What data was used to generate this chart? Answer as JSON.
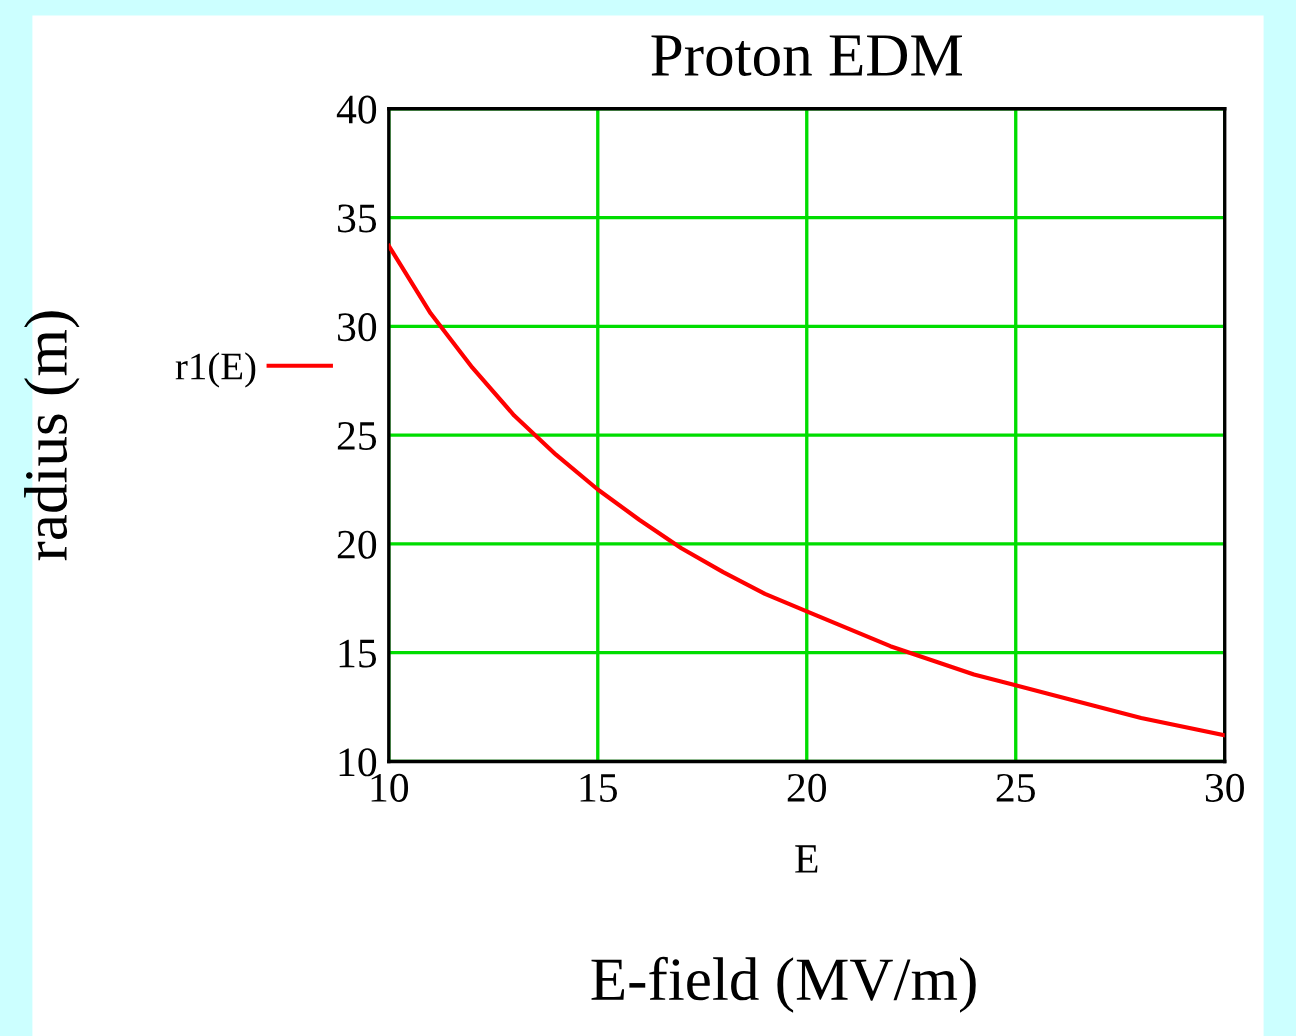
{
  "chart_data": {
    "type": "line",
    "title": "Proton EDM",
    "xlabel": "E",
    "ylabel": "radius (m)",
    "annotations": [
      "E-field (MV/m)"
    ],
    "series": [
      {
        "name": "r1(E)",
        "color": "#ff0000",
        "x": [
          10,
          11,
          12,
          13,
          14,
          15,
          16,
          17,
          18,
          19,
          20,
          22,
          24,
          26,
          28,
          30
        ],
        "values": [
          33.7,
          30.6,
          28.1,
          25.9,
          24.1,
          22.5,
          21.1,
          19.8,
          18.7,
          17.7,
          16.9,
          15.3,
          14.0,
          13.0,
          12.0,
          11.2
        ]
      }
    ],
    "xlim": [
      10,
      30
    ],
    "xticks": [
      10,
      15,
      20,
      25,
      30
    ],
    "ylim": [
      10,
      40
    ],
    "yticks": [
      10,
      15,
      20,
      25,
      30,
      35,
      40
    ],
    "grid": true,
    "legend": "left",
    "marker": "none",
    "line_style": "solid"
  }
}
